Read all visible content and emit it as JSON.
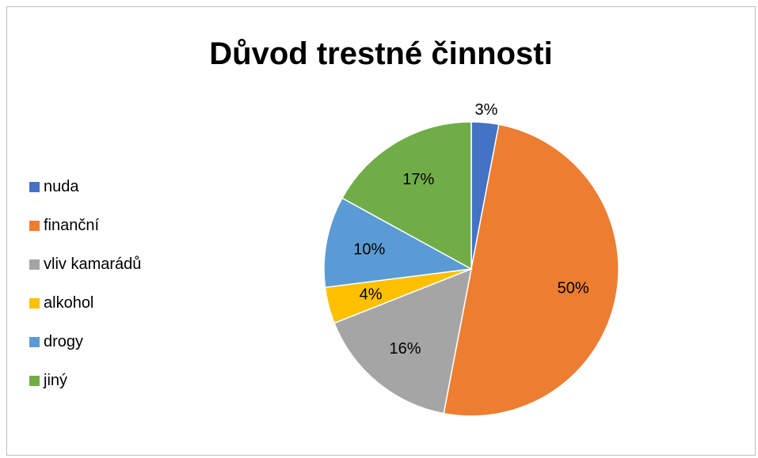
{
  "chart_data": {
    "type": "pie",
    "title": "Důvod trestné činnosti",
    "categories": [
      "nuda",
      "finanční",
      "vliv kamarádů",
      "alkohol",
      "drogy",
      "jiný"
    ],
    "values": [
      3,
      50,
      16,
      4,
      10,
      17
    ],
    "labels": [
      "3%",
      "50%",
      "16%",
      "4%",
      "10%",
      "17%"
    ],
    "colors": [
      "#4472C4",
      "#ED7D31",
      "#A5A5A5",
      "#FFC000",
      "#5B9BD5",
      "#70AD47"
    ],
    "start_angle_deg": 0,
    "direction": "clockwise",
    "legend_position": "left"
  }
}
